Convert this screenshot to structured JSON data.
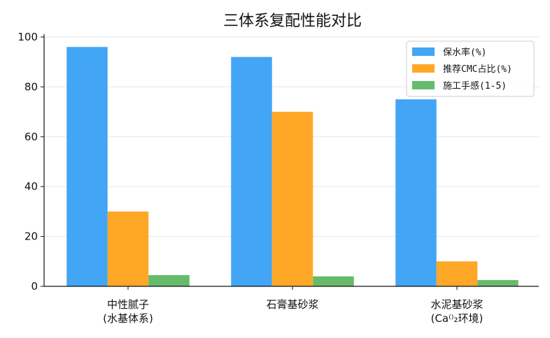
{
  "chart_data": {
    "type": "bar",
    "title": "三体系复配性能对比",
    "categories": [
      [
        "中性腻子",
        "(水基体系)"
      ],
      [
        "石膏基砂浆"
      ],
      [
        "水泥基砂浆",
        "(Ca⁽⁾₂环境)"
      ]
    ],
    "series": [
      {
        "name": "保水率(%)",
        "values": [
          96,
          92,
          75
        ],
        "color": "#42A5F5"
      },
      {
        "name": "推荐CMC占比(%)",
        "values": [
          30,
          70,
          10
        ],
        "color": "#FFA726"
      },
      {
        "name": "施工手感(1-5)",
        "values": [
          4.5,
          4,
          2.5
        ],
        "color": "#66BB6A"
      }
    ],
    "xlabel": "",
    "ylabel": "",
    "ylim": [
      0,
      100
    ],
    "yticks": [
      0,
      20,
      40,
      60,
      80,
      100
    ],
    "grid": "y",
    "legend": "top-right"
  }
}
